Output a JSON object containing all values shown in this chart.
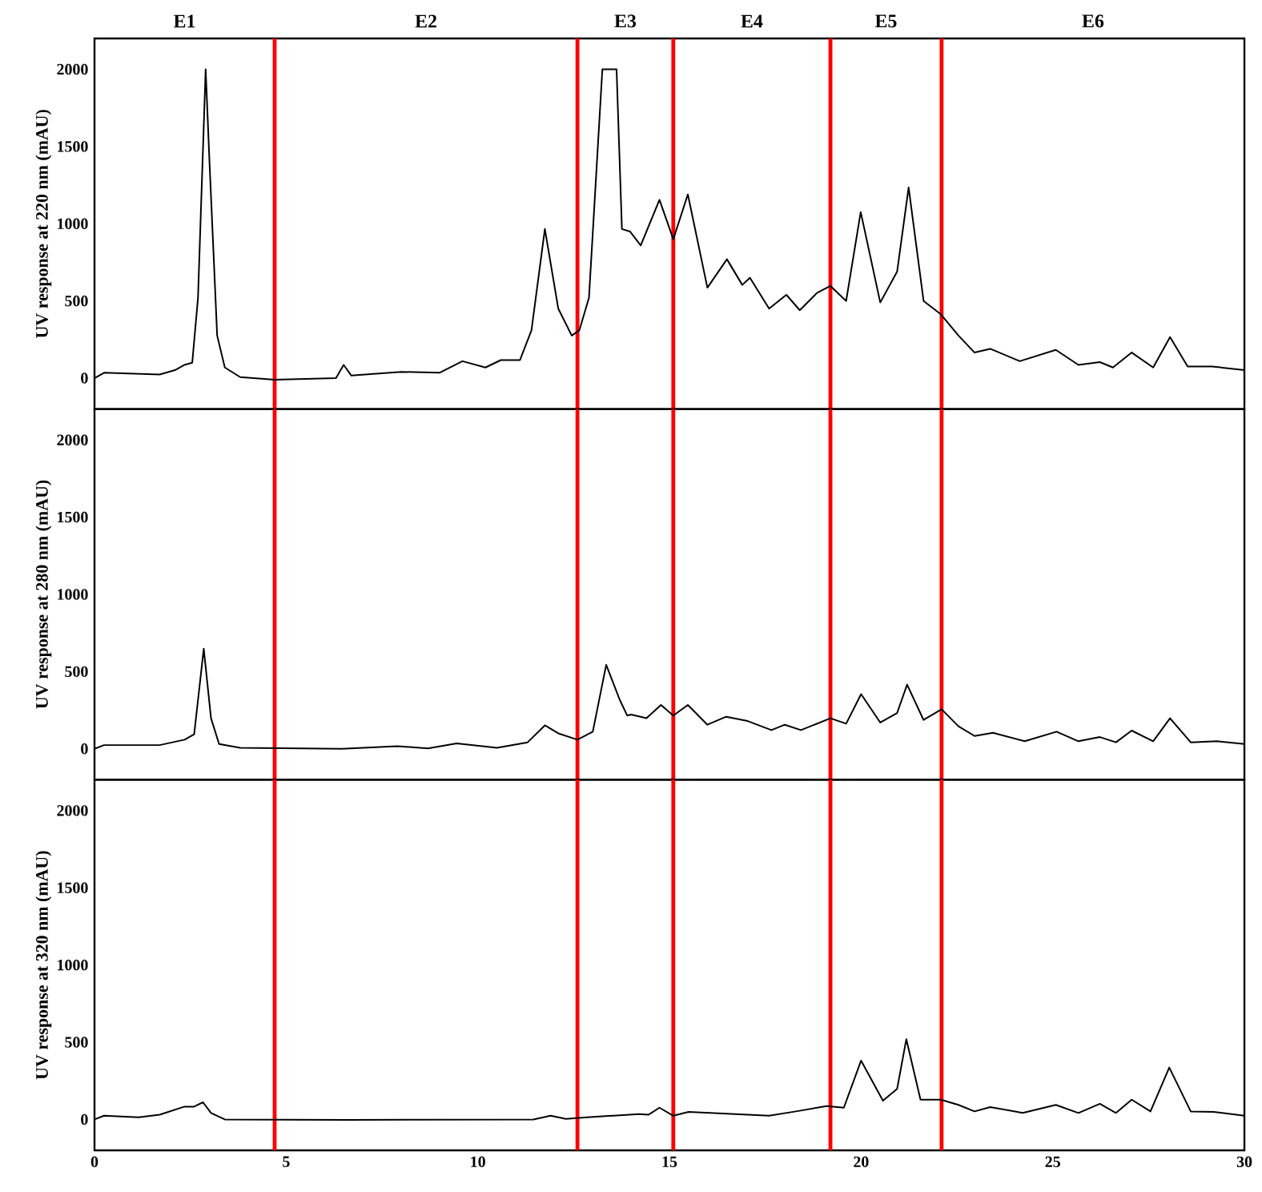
{
  "chart_data": [
    {
      "type": "line",
      "ylabel": "UV response at 220 nm (mAU)",
      "xlim": [
        0,
        30
      ],
      "xticks": [
        0,
        5,
        10,
        15,
        20,
        25,
        30
      ],
      "ylim": [
        -200,
        2200
      ],
      "yticks": [
        0,
        500,
        1000,
        1500,
        2000
      ],
      "tick_labels": "y",
      "annotations": [
        "E1",
        "E2",
        "E3",
        "E4",
        "E5",
        "E6"
      ],
      "ref_lines": [
        {
          "axis": "x",
          "value": 4.7,
          "color": "#ff0000"
        },
        {
          "axis": "x",
          "value": 12.6,
          "color": "#ff0000"
        },
        {
          "axis": "x",
          "value": 15.1,
          "color": "#ff0000"
        },
        {
          "axis": "x",
          "value": 19.2,
          "color": "#ff0000"
        },
        {
          "axis": "x",
          "value": 22.1,
          "color": "#ff0000"
        }
      ],
      "series": [
        {
          "color": "#000000",
          "x": [
            0,
            0.25,
            1.7,
            2.1,
            2.35,
            2.55,
            2.7,
            2.9,
            3.0,
            3.2,
            3.4,
            3.8,
            4.7,
            6.3,
            6.5,
            6.7,
            8.0,
            9.0,
            9.6,
            10.2,
            10.6,
            11.1,
            11.4,
            11.75,
            12.1,
            12.45,
            12.65,
            12.9,
            13.25,
            13.62,
            13.76,
            13.97,
            14.25,
            14.74,
            15.1,
            15.48,
            15.99,
            16.5,
            16.9,
            17.1,
            17.6,
            18.05,
            18.4,
            18.85,
            19.2,
            19.61,
            19.99,
            20.5,
            20.94,
            21.24,
            21.63,
            22.08,
            22.54,
            22.96,
            23.37,
            24.14,
            25.08,
            25.67,
            26.23,
            26.57,
            27.06,
            27.62,
            28.06,
            28.52,
            29.15,
            30
          ],
          "values": [
            0,
            35,
            24,
            52,
            86,
            100,
            520,
            2000,
            1400,
            276,
            69,
            7,
            -10,
            0,
            86,
            17,
            41,
            35,
            110,
            69,
            117,
            117,
            310,
            966,
            450,
            276,
            310,
            520,
            2000,
            2000,
            966,
            950,
            860,
            1155,
            900,
            1190,
            586,
            770,
            604,
            650,
            450,
            540,
            440,
            552,
            597,
            500,
            1076,
            490,
            690,
            1235,
            500,
            414,
            276,
            166,
            190,
            110,
            183,
            86,
            104,
            69,
            166,
            69,
            266,
            76,
            76,
            52
          ]
        }
      ]
    },
    {
      "type": "line",
      "ylabel": "UV response at 280 nm (mAU)",
      "xlim": [
        0,
        30
      ],
      "xticks": [
        0,
        5,
        10,
        15,
        20,
        25,
        30
      ],
      "ylim": [
        -200,
        2200
      ],
      "yticks": [
        0,
        500,
        1000,
        1500,
        2000
      ],
      "tick_labels": "y",
      "ref_lines": [
        {
          "axis": "x",
          "value": 4.7,
          "color": "#ff0000"
        },
        {
          "axis": "x",
          "value": 12.6,
          "color": "#ff0000"
        },
        {
          "axis": "x",
          "value": 15.1,
          "color": "#ff0000"
        },
        {
          "axis": "x",
          "value": 19.2,
          "color": "#ff0000"
        },
        {
          "axis": "x",
          "value": 22.1,
          "color": "#ff0000"
        }
      ],
      "series": [
        {
          "color": "#000000",
          "x": [
            0,
            0.25,
            1.7,
            2.35,
            2.6,
            2.85,
            3.04,
            3.25,
            3.8,
            6.45,
            7.9,
            8.7,
            9.45,
            10.5,
            11.3,
            11.75,
            12.1,
            12.6,
            13.0,
            13.35,
            13.7,
            13.9,
            14.0,
            14.4,
            14.78,
            15.1,
            15.48,
            15.99,
            16.48,
            17.04,
            17.66,
            18.01,
            18.43,
            19.2,
            19.61,
            20.0,
            20.5,
            20.94,
            21.2,
            21.63,
            22.1,
            22.54,
            22.96,
            23.44,
            24.27,
            25.1,
            25.67,
            26.23,
            26.65,
            27.06,
            27.62,
            28.06,
            28.6,
            29.29,
            30
          ],
          "values": [
            0,
            24,
            24,
            59,
            94,
            648,
            198,
            31,
            7,
            0,
            17,
            3,
            35,
            7,
            42,
            152,
            100,
            59,
            111,
            544,
            319,
            215,
            222,
            198,
            284,
            215,
            284,
            156,
            208,
            180,
            121,
            156,
            121,
            198,
            163,
            354,
            170,
            232,
            416,
            187,
            256,
            146,
            83,
            104,
            49,
            111,
            49,
            76,
            42,
            118,
            49,
            198,
            42,
            49,
            31
          ]
        }
      ]
    },
    {
      "type": "line",
      "ylabel": "UV response at 320 nm (mAU)",
      "xlim": [
        0,
        30
      ],
      "xticks": [
        0,
        5,
        10,
        15,
        20,
        25,
        30
      ],
      "ylim": [
        -200,
        2200
      ],
      "yticks": [
        0,
        500,
        1000,
        1500,
        2000
      ],
      "ref_lines": [
        {
          "axis": "x",
          "value": 4.7,
          "color": "#ff0000"
        },
        {
          "axis": "x",
          "value": 12.6,
          "color": "#ff0000"
        },
        {
          "axis": "x",
          "value": 15.1,
          "color": "#ff0000"
        },
        {
          "axis": "x",
          "value": 19.2,
          "color": "#ff0000"
        },
        {
          "axis": "x",
          "value": 22.1,
          "color": "#ff0000"
        }
      ],
      "series": [
        {
          "color": "#000000",
          "x": [
            0,
            0.25,
            1.15,
            1.7,
            2.35,
            2.6,
            2.83,
            3.04,
            3.4,
            6.6,
            11.45,
            11.9,
            12.3,
            12.85,
            14.2,
            14.46,
            14.74,
            15.1,
            15.5,
            17.6,
            18.3,
            19.1,
            19.55,
            20.0,
            20.57,
            20.94,
            21.18,
            21.55,
            22.08,
            22.54,
            22.96,
            23.37,
            24.22,
            25.08,
            25.67,
            26.23,
            26.65,
            27.06,
            27.55,
            28.04,
            28.6,
            29.2,
            30
          ],
          "values": [
            0,
            24,
            14,
            31,
            83,
            83,
            111,
            42,
            0,
            -3,
            0,
            24,
            3,
            14,
            35,
            31,
            76,
            24,
            49,
            24,
            52,
            87,
            76,
            381,
            121,
            198,
            520,
            128,
            128,
            94,
            52,
            80,
            42,
            94,
            42,
            101,
            42,
            128,
            52,
            336,
            52,
            49,
            24
          ]
        }
      ]
    }
  ]
}
